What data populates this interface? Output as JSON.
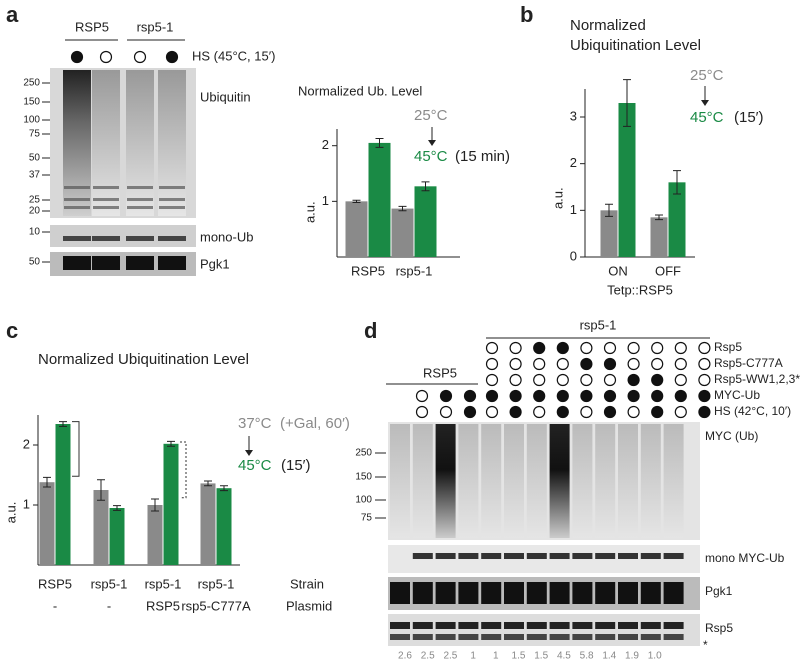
{
  "panel_a": {
    "label": "a",
    "groups": [
      "RSP5",
      "rsp5-1"
    ],
    "hs_label": "HS (45°C, 15′)",
    "hs": [
      true,
      false,
      false,
      true
    ],
    "ubiquitin_markers": [
      250,
      150,
      100,
      75,
      50,
      37,
      25,
      20
    ],
    "mono_marker": 10,
    "pgk1_marker": 50,
    "blot_labels": [
      "Ubiquitin",
      "mono-Ub",
      "Pgk1"
    ],
    "chart": {
      "type": "bar",
      "title": "Normalized Ub. Level",
      "ylabel": "a.u.",
      "categories": [
        "RSP5",
        "rsp5-1"
      ],
      "ylim": [
        0,
        2.3
      ],
      "yticks": [
        1,
        2
      ],
      "series": [
        {
          "name": "25°C",
          "color": "#8a8a8a",
          "values": [
            1.0,
            0.87
          ],
          "errors": [
            0.02,
            0.04
          ]
        },
        {
          "name": "45°C",
          "note": "(15 min)",
          "color": "#1a8a45",
          "values": [
            2.05,
            1.27
          ],
          "errors": [
            0.08,
            0.08
          ]
        }
      ]
    }
  },
  "panel_b": {
    "label": "b",
    "chart": {
      "type": "bar",
      "title": [
        "Normalized",
        "Ubiquitination Level"
      ],
      "ylabel": "a.u.",
      "xlabel": "Tetp::RSP5",
      "categories": [
        "ON",
        "OFF"
      ],
      "ylim": [
        0,
        3.6
      ],
      "yticks": [
        0,
        1,
        2,
        3
      ],
      "series": [
        {
          "name": "25°C",
          "color": "#8a8a8a",
          "values": [
            1.0,
            0.85
          ],
          "errors": [
            0.13,
            0.05
          ]
        },
        {
          "name": "45°C",
          "note": "(15′)",
          "color": "#1a8a45",
          "values": [
            3.3,
            1.6
          ],
          "errors": [
            0.5,
            0.25
          ]
        }
      ]
    }
  },
  "panel_c": {
    "label": "c",
    "chart": {
      "type": "bar",
      "title": "Normalized Ubiquitination Level",
      "ylabel": "a.u.",
      "categories": [
        "RSP5",
        "rsp5-1",
        "rsp5-1",
        "rsp5-1"
      ],
      "plasmids": [
        "-",
        "-",
        "RSP5",
        "rsp5-C777A"
      ],
      "row_labels": [
        "Strain",
        "Plasmid"
      ],
      "ylim": [
        0,
        2.5
      ],
      "yticks": [
        1,
        2
      ],
      "series": [
        {
          "name": "37°C",
          "note": "(+Gal, 60′)",
          "color": "#8a8a8a",
          "values": [
            1.38,
            1.25,
            1.0,
            1.36
          ],
          "errors": [
            0.08,
            0.17,
            0.1,
            0.04
          ]
        },
        {
          "name": "45°C",
          "note": "(15′)",
          "color": "#1a8a45",
          "values": [
            2.35,
            0.95,
            2.02,
            1.28
          ],
          "errors": [
            0.04,
            0.04,
            0.04,
            0.04
          ]
        }
      ]
    }
  },
  "panel_d": {
    "label": "d",
    "groups": [
      "RSP5",
      "rsp5-1"
    ],
    "rows": [
      {
        "label": "Rsp5",
        "rsp5_1": [
          false,
          false,
          true,
          true,
          false,
          false,
          false,
          false,
          false,
          false
        ]
      },
      {
        "label": "Rsp5-C777A",
        "rsp5_1": [
          false,
          false,
          false,
          false,
          true,
          true,
          false,
          false,
          false,
          false
        ]
      },
      {
        "label": "Rsp5-WW1,2,3*",
        "rsp5_1": [
          false,
          false,
          false,
          false,
          false,
          false,
          true,
          true,
          false,
          false
        ]
      },
      {
        "label": "MYC-Ub",
        "rsp5": [
          false,
          true,
          true
        ],
        "rsp5_1": [
          true,
          true,
          true,
          true,
          true,
          true,
          true,
          true,
          true,
          true
        ]
      },
      {
        "label": "HS (42°C, 10′)",
        "rsp5": [
          false,
          false,
          true
        ],
        "rsp5_1": [
          false,
          true,
          false,
          true,
          false,
          true,
          false,
          true,
          false,
          true
        ]
      }
    ],
    "markers": [
      250,
      150,
      100,
      75
    ],
    "blot_labels": [
      "MYC (Ub)",
      "mono MYC-Ub",
      "Pgk1",
      "Rsp5",
      "*"
    ],
    "quantification": [
      "2.6",
      "2.5",
      "2.5",
      "1",
      "1",
      "1.5",
      "1.5",
      "4.5",
      "5.8",
      "1.4",
      "1.9",
      "1.0"
    ]
  }
}
